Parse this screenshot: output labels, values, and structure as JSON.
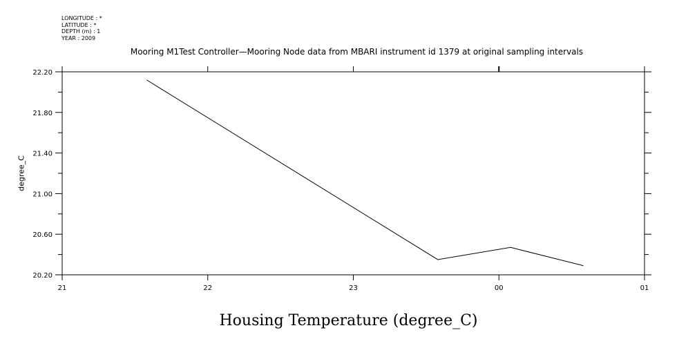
{
  "header_meta": {
    "longitude": "LONGITUDE : *",
    "latitude": "LATITUDE : *",
    "depth": "DEPTH (m) : 1",
    "year": "YEAR : 2009"
  },
  "chart_data": {
    "type": "line",
    "title": "Mooring M1Test Controller—Mooring Node data from MBARI instrument id 1379 at original sampling intervals",
    "bottom_title": "Housing Temperature (degree_C)",
    "ylabel": "degree_C",
    "xlabel": "",
    "x_ticks": [
      "21",
      "22",
      "23",
      "00",
      "01"
    ],
    "x_tick_hours": [
      21,
      22,
      23,
      24,
      25
    ],
    "xlim_hours": [
      21,
      25
    ],
    "y_ticks": [
      "20.20",
      "20.60",
      "21.00",
      "21.40",
      "21.80",
      "22.20"
    ],
    "ylim": [
      20.2,
      22.2
    ],
    "grid": false,
    "series": [
      {
        "x_hours": [
          21.58,
          23.58,
          24.08,
          24.58
        ],
        "values": [
          22.12,
          20.35,
          20.47,
          20.29
        ]
      }
    ]
  }
}
